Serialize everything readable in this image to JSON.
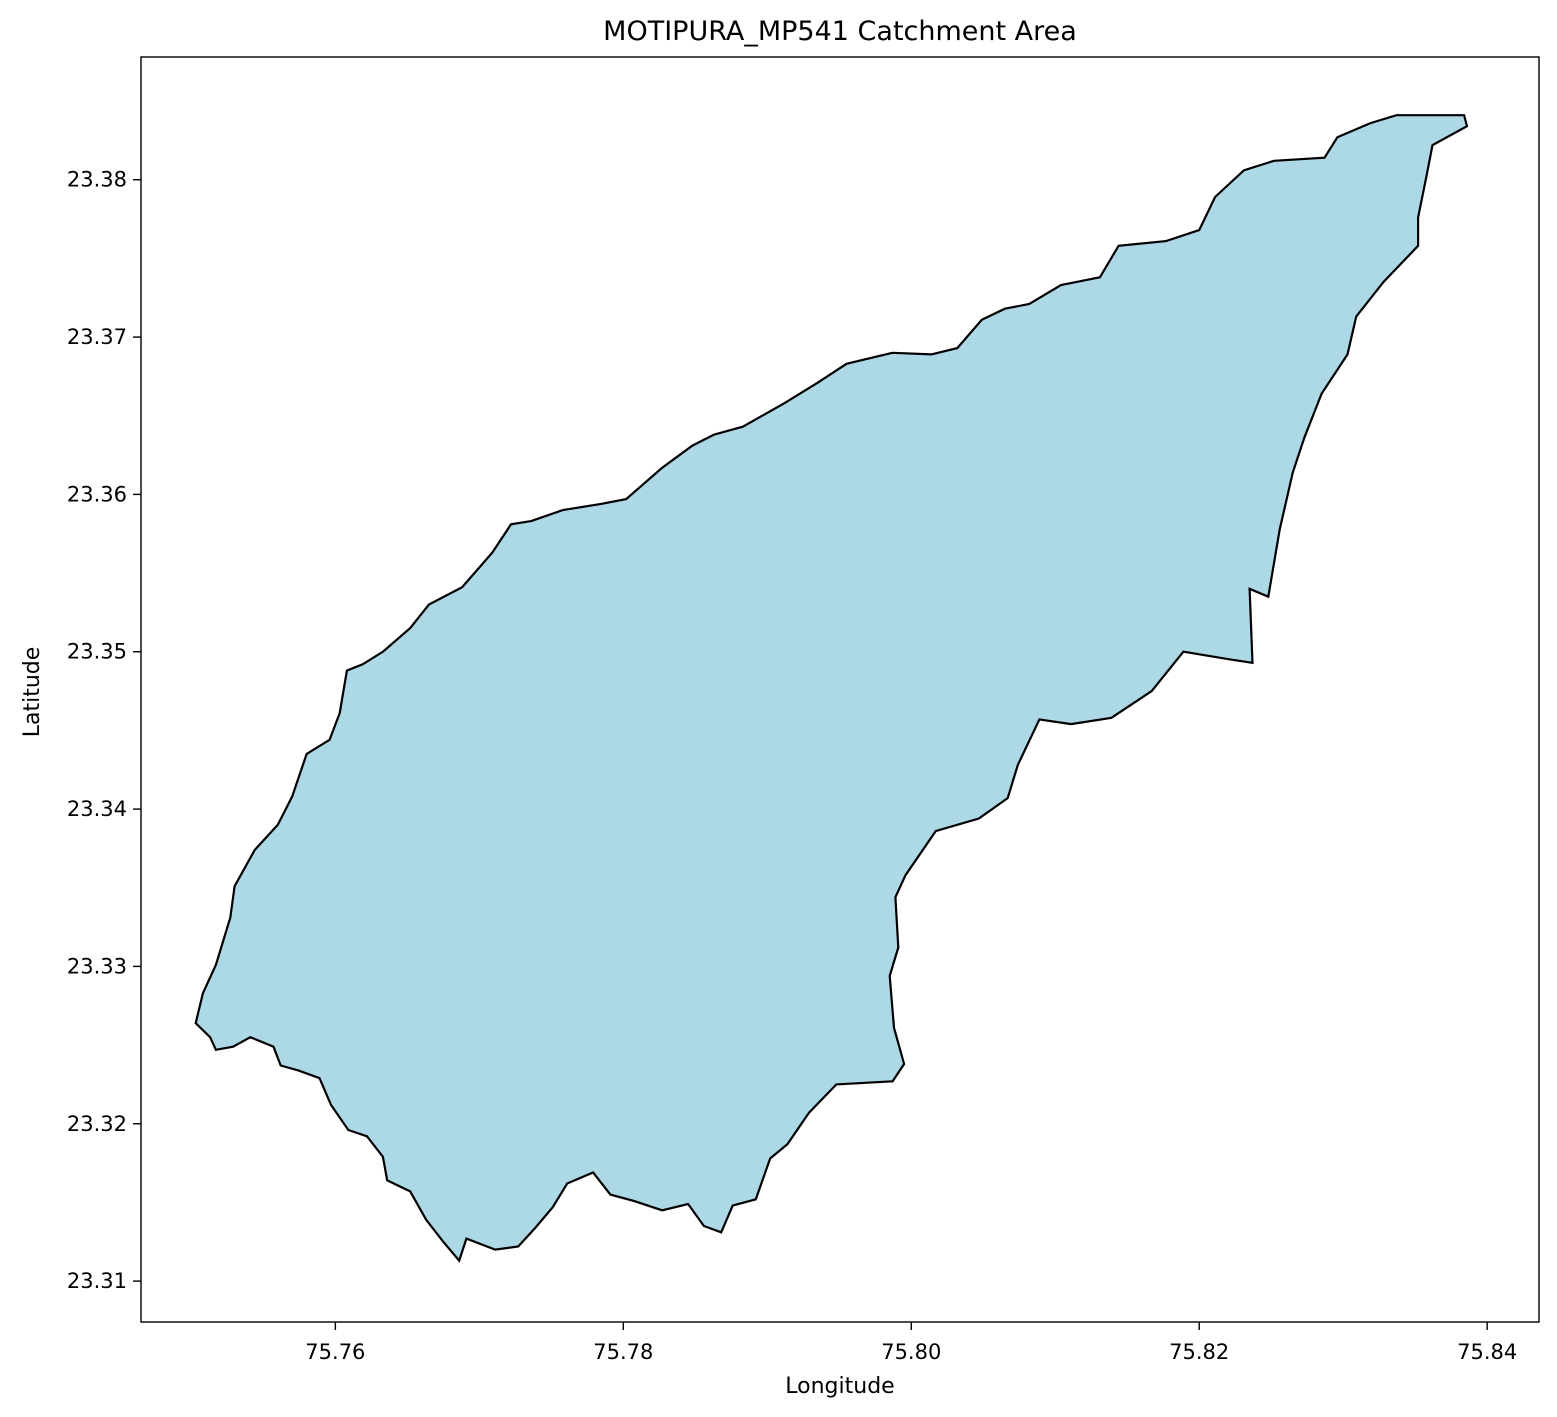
{
  "chart_data": {
    "type": "area",
    "title": "MOTIPURA_MP541 Catchment Area",
    "xlabel": "Longitude",
    "ylabel": "Latitude",
    "xlim": [
      75.7465,
      75.8436
    ],
    "ylim": [
      75.7465,
      23.3878
    ],
    "y_range": [
      23.3074,
      23.3878
    ],
    "x_ticks": [
      "75.76",
      "75.78",
      "75.80",
      "75.82",
      "75.84"
    ],
    "y_ticks": [
      "23.31",
      "23.32",
      "23.33",
      "23.34",
      "23.35",
      "23.36",
      "23.37",
      "23.38"
    ],
    "grid": false,
    "legend": "none",
    "fill_color": "#add8e6",
    "edge_color": "#000000",
    "series": [
      {
        "polygon": [
          [
            75.7513,
            23.3255
          ],
          [
            75.7517,
            23.3247
          ],
          [
            75.7529,
            23.3249
          ],
          [
            75.7541,
            23.3255
          ],
          [
            75.7557,
            23.3249
          ],
          [
            75.7562,
            23.3237
          ],
          [
            75.7574,
            23.3234
          ],
          [
            75.7589,
            23.3229
          ],
          [
            75.7597,
            23.3212
          ],
          [
            75.7609,
            23.3196
          ],
          [
            75.7622,
            23.3192
          ],
          [
            75.7633,
            23.3179
          ],
          [
            75.7636,
            23.3164
          ],
          [
            75.7652,
            23.3157
          ],
          [
            75.7663,
            23.3139
          ],
          [
            75.7675,
            23.3125
          ],
          [
            75.7686,
            23.3113
          ],
          [
            75.7691,
            23.3127
          ],
          [
            75.7711,
            23.312
          ],
          [
            75.7727,
            23.3122
          ],
          [
            75.7739,
            23.3134
          ],
          [
            75.7751,
            23.3147
          ],
          [
            75.7761,
            23.3162
          ],
          [
            75.7779,
            23.3169
          ],
          [
            75.7791,
            23.3155
          ],
          [
            75.7807,
            23.3151
          ],
          [
            75.7827,
            23.3145
          ],
          [
            75.7845,
            23.3149
          ],
          [
            75.7856,
            23.3135
          ],
          [
            75.7868,
            23.3131
          ],
          [
            75.7876,
            23.3148
          ],
          [
            75.7892,
            23.3152
          ],
          [
            75.7902,
            23.3178
          ],
          [
            75.7914,
            23.3187
          ],
          [
            75.7929,
            23.3207
          ],
          [
            75.7948,
            23.3225
          ],
          [
            75.7987,
            23.3227
          ],
          [
            75.7995,
            23.3238
          ],
          [
            75.7988,
            23.3261
          ],
          [
            75.7985,
            23.3294
          ],
          [
            75.7991,
            23.3312
          ],
          [
            75.7989,
            23.3344
          ],
          [
            75.7996,
            23.3358
          ],
          [
            75.8017,
            23.3386
          ],
          [
            75.8047,
            23.3394
          ],
          [
            75.8067,
            23.3407
          ],
          [
            75.8074,
            23.3428
          ],
          [
            75.8089,
            23.3457
          ],
          [
            75.8111,
            23.3454
          ],
          [
            75.8139,
            23.3458
          ],
          [
            75.8167,
            23.3475
          ],
          [
            75.8189,
            23.35
          ],
          [
            75.8222,
            23.3495
          ],
          [
            75.8237,
            23.3493
          ],
          [
            75.8235,
            23.354
          ],
          [
            75.8248,
            23.3535
          ],
          [
            75.8256,
            23.3578
          ],
          [
            75.8265,
            23.3614
          ],
          [
            75.8273,
            23.3636
          ],
          [
            75.8285,
            23.3664
          ],
          [
            75.8303,
            23.3689
          ],
          [
            75.8309,
            23.3713
          ],
          [
            75.8328,
            23.3735
          ],
          [
            75.8352,
            23.3758
          ],
          [
            75.8352,
            23.3776
          ],
          [
            75.8358,
            23.3803
          ],
          [
            75.8362,
            23.3822
          ],
          [
            75.8386,
            23.3834
          ],
          [
            75.8384,
            23.3841
          ],
          [
            75.8337,
            23.3841
          ],
          [
            75.8319,
            23.3836
          ],
          [
            75.8296,
            23.3827
          ],
          [
            75.8287,
            23.3814
          ],
          [
            75.8252,
            23.3812
          ],
          [
            75.8231,
            23.3806
          ],
          [
            75.8211,
            23.3789
          ],
          [
            75.82,
            23.3768
          ],
          [
            75.8177,
            23.3761
          ],
          [
            75.8144,
            23.3758
          ],
          [
            75.8131,
            23.3738
          ],
          [
            75.8104,
            23.3733
          ],
          [
            75.8082,
            23.3721
          ],
          [
            75.8065,
            23.3718
          ],
          [
            75.8049,
            23.3711
          ],
          [
            75.8032,
            23.3693
          ],
          [
            75.8014,
            23.3689
          ],
          [
            75.7987,
            23.369
          ],
          [
            75.7955,
            23.3683
          ],
          [
            75.7935,
            23.3671
          ],
          [
            75.7912,
            23.3658
          ],
          [
            75.7883,
            23.3643
          ],
          [
            75.7863,
            23.3638
          ],
          [
            75.7848,
            23.3631
          ],
          [
            75.7827,
            23.3617
          ],
          [
            75.7802,
            23.3597
          ],
          [
            75.7785,
            23.3594
          ],
          [
            75.7758,
            23.359
          ],
          [
            75.7736,
            23.3583
          ],
          [
            75.7722,
            23.3581
          ],
          [
            75.7709,
            23.3563
          ],
          [
            75.7688,
            23.3541
          ],
          [
            75.7665,
            23.353
          ],
          [
            75.7652,
            23.3515
          ],
          [
            75.7633,
            23.35
          ],
          [
            75.7619,
            23.3492
          ],
          [
            75.7608,
            23.3488
          ],
          [
            75.7603,
            23.3461
          ],
          [
            75.7596,
            23.3444
          ],
          [
            75.758,
            23.3435
          ],
          [
            75.757,
            23.3408
          ],
          [
            75.756,
            23.339
          ],
          [
            75.7544,
            23.3374
          ],
          [
            75.753,
            23.3351
          ],
          [
            75.7527,
            23.3331
          ],
          [
            75.7517,
            23.3301
          ],
          [
            75.7508,
            23.3283
          ],
          [
            75.7503,
            23.3264
          ]
        ]
      }
    ]
  }
}
